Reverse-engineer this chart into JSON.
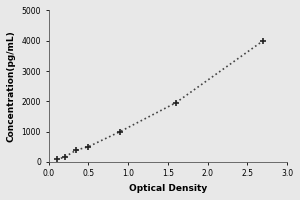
{
  "x_data": [
    0.1,
    0.2,
    0.35,
    0.5,
    0.9,
    1.6,
    2.7
  ],
  "y_data": [
    78,
    156,
    390,
    500,
    1000,
    1950,
    4000
  ],
  "xlabel": "Optical Density",
  "ylabel": "Concentration(pg/mL)",
  "xlim": [
    0,
    3
  ],
  "ylim": [
    0,
    5000
  ],
  "xticks": [
    0,
    0.5,
    1,
    1.5,
    2,
    2.5,
    3
  ],
  "yticks": [
    0,
    1000,
    2000,
    3000,
    4000,
    5000
  ],
  "line_color": "#444444",
  "marker": "+",
  "marker_size": 5,
  "marker_color": "#222222",
  "line_style": ":",
  "line_width": 1.2,
  "bg_color": "#e8e8e8",
  "plot_bg_color": "#e8e8e8",
  "label_fontsize": 6.5,
  "tick_fontsize": 5.5,
  "marker_edge_width": 1.2
}
